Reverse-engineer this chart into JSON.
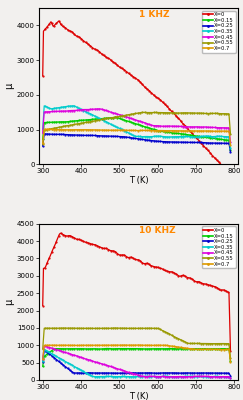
{
  "title1": "1 KHZ",
  "title2": "10 KHZ",
  "xlabel": "T (K)",
  "ylabel": "μ",
  "legend_labels": [
    "X=0",
    "X=0.15",
    "X=0.25",
    "X=0.35",
    "X=0.45",
    "X=0.55",
    "X=0.7"
  ],
  "colors_top": [
    "#dd0000",
    "#00cc00",
    "#0000cc",
    "#00cccc",
    "#dd00dd",
    "#999900",
    "#dd9900"
  ],
  "colors_bot": [
    "#dd0000",
    "#00cc00",
    "#0000cc",
    "#00cccc",
    "#dd00dd",
    "#999900",
    "#dd9900"
  ],
  "title_color": "#ff8800",
  "bg_color": "#f2f0ee",
  "ylim1": [
    0,
    4500
  ],
  "ylim2": [
    0,
    4500
  ],
  "xlim": [
    290,
    810
  ],
  "yticks1": [
    0,
    1000,
    2000,
    3000,
    4000
  ],
  "yticks2": [
    0,
    500,
    1000,
    1500,
    2000,
    2500,
    3000,
    3500,
    4000,
    4500
  ],
  "xticks": [
    300,
    400,
    500,
    600,
    700,
    800
  ]
}
